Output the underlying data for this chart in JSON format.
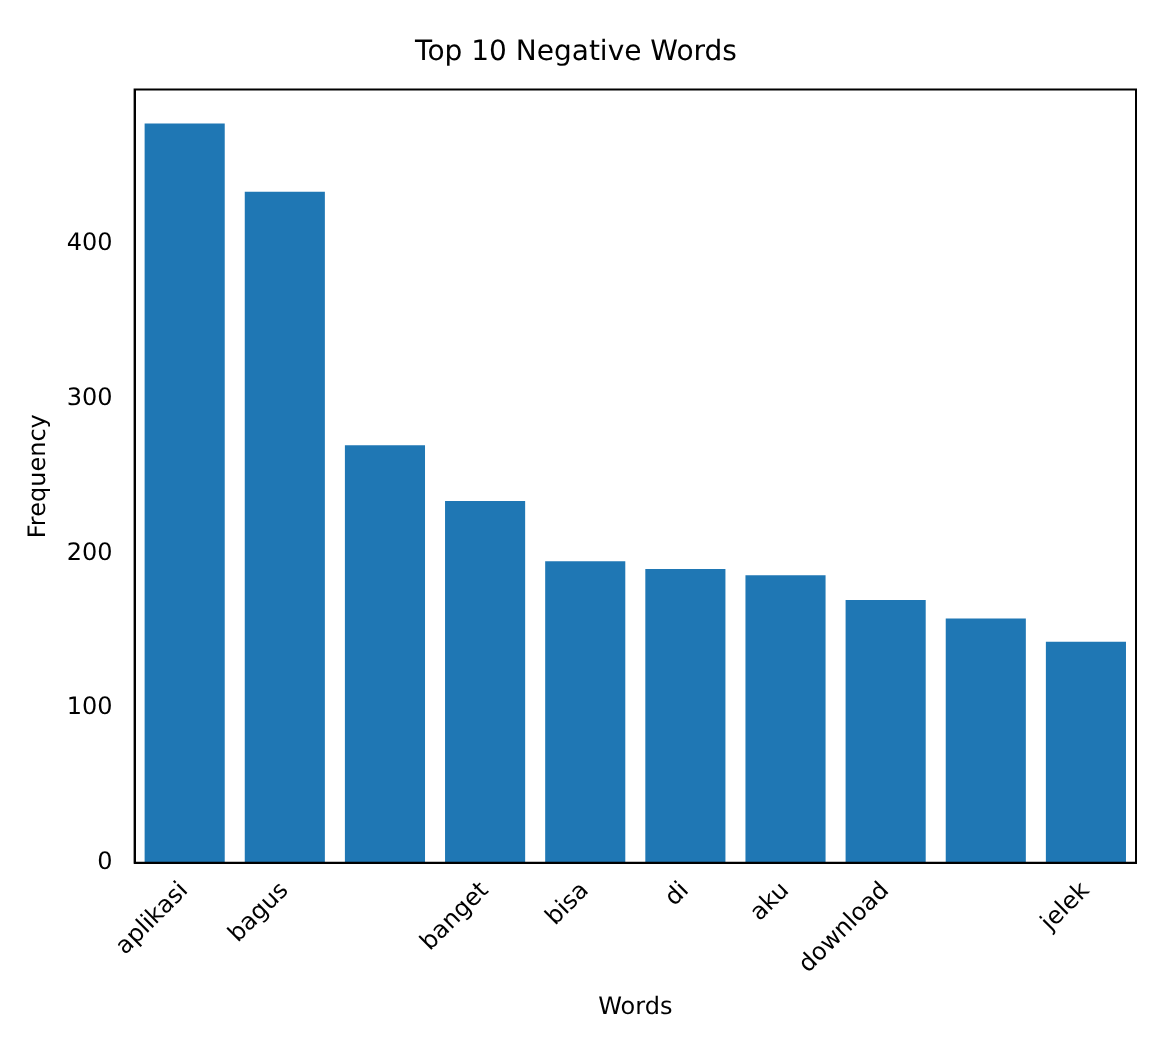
{
  "chart_data": {
    "type": "bar",
    "title": "Top 10 Negative Words",
    "xlabel": "Words",
    "ylabel": "Frequency",
    "categories": [
      "aplikasi",
      "bagus",
      null,
      "banget",
      "bisa",
      "di",
      "aku",
      "download",
      null,
      "jelek"
    ],
    "values": [
      478,
      434,
      270,
      234,
      195,
      190,
      186,
      170,
      158,
      143
    ],
    "color": "#1f77b4",
    "ylim": [
      0,
      500
    ],
    "yticks": [
      0,
      100,
      200,
      300,
      400
    ],
    "grid": false
  }
}
